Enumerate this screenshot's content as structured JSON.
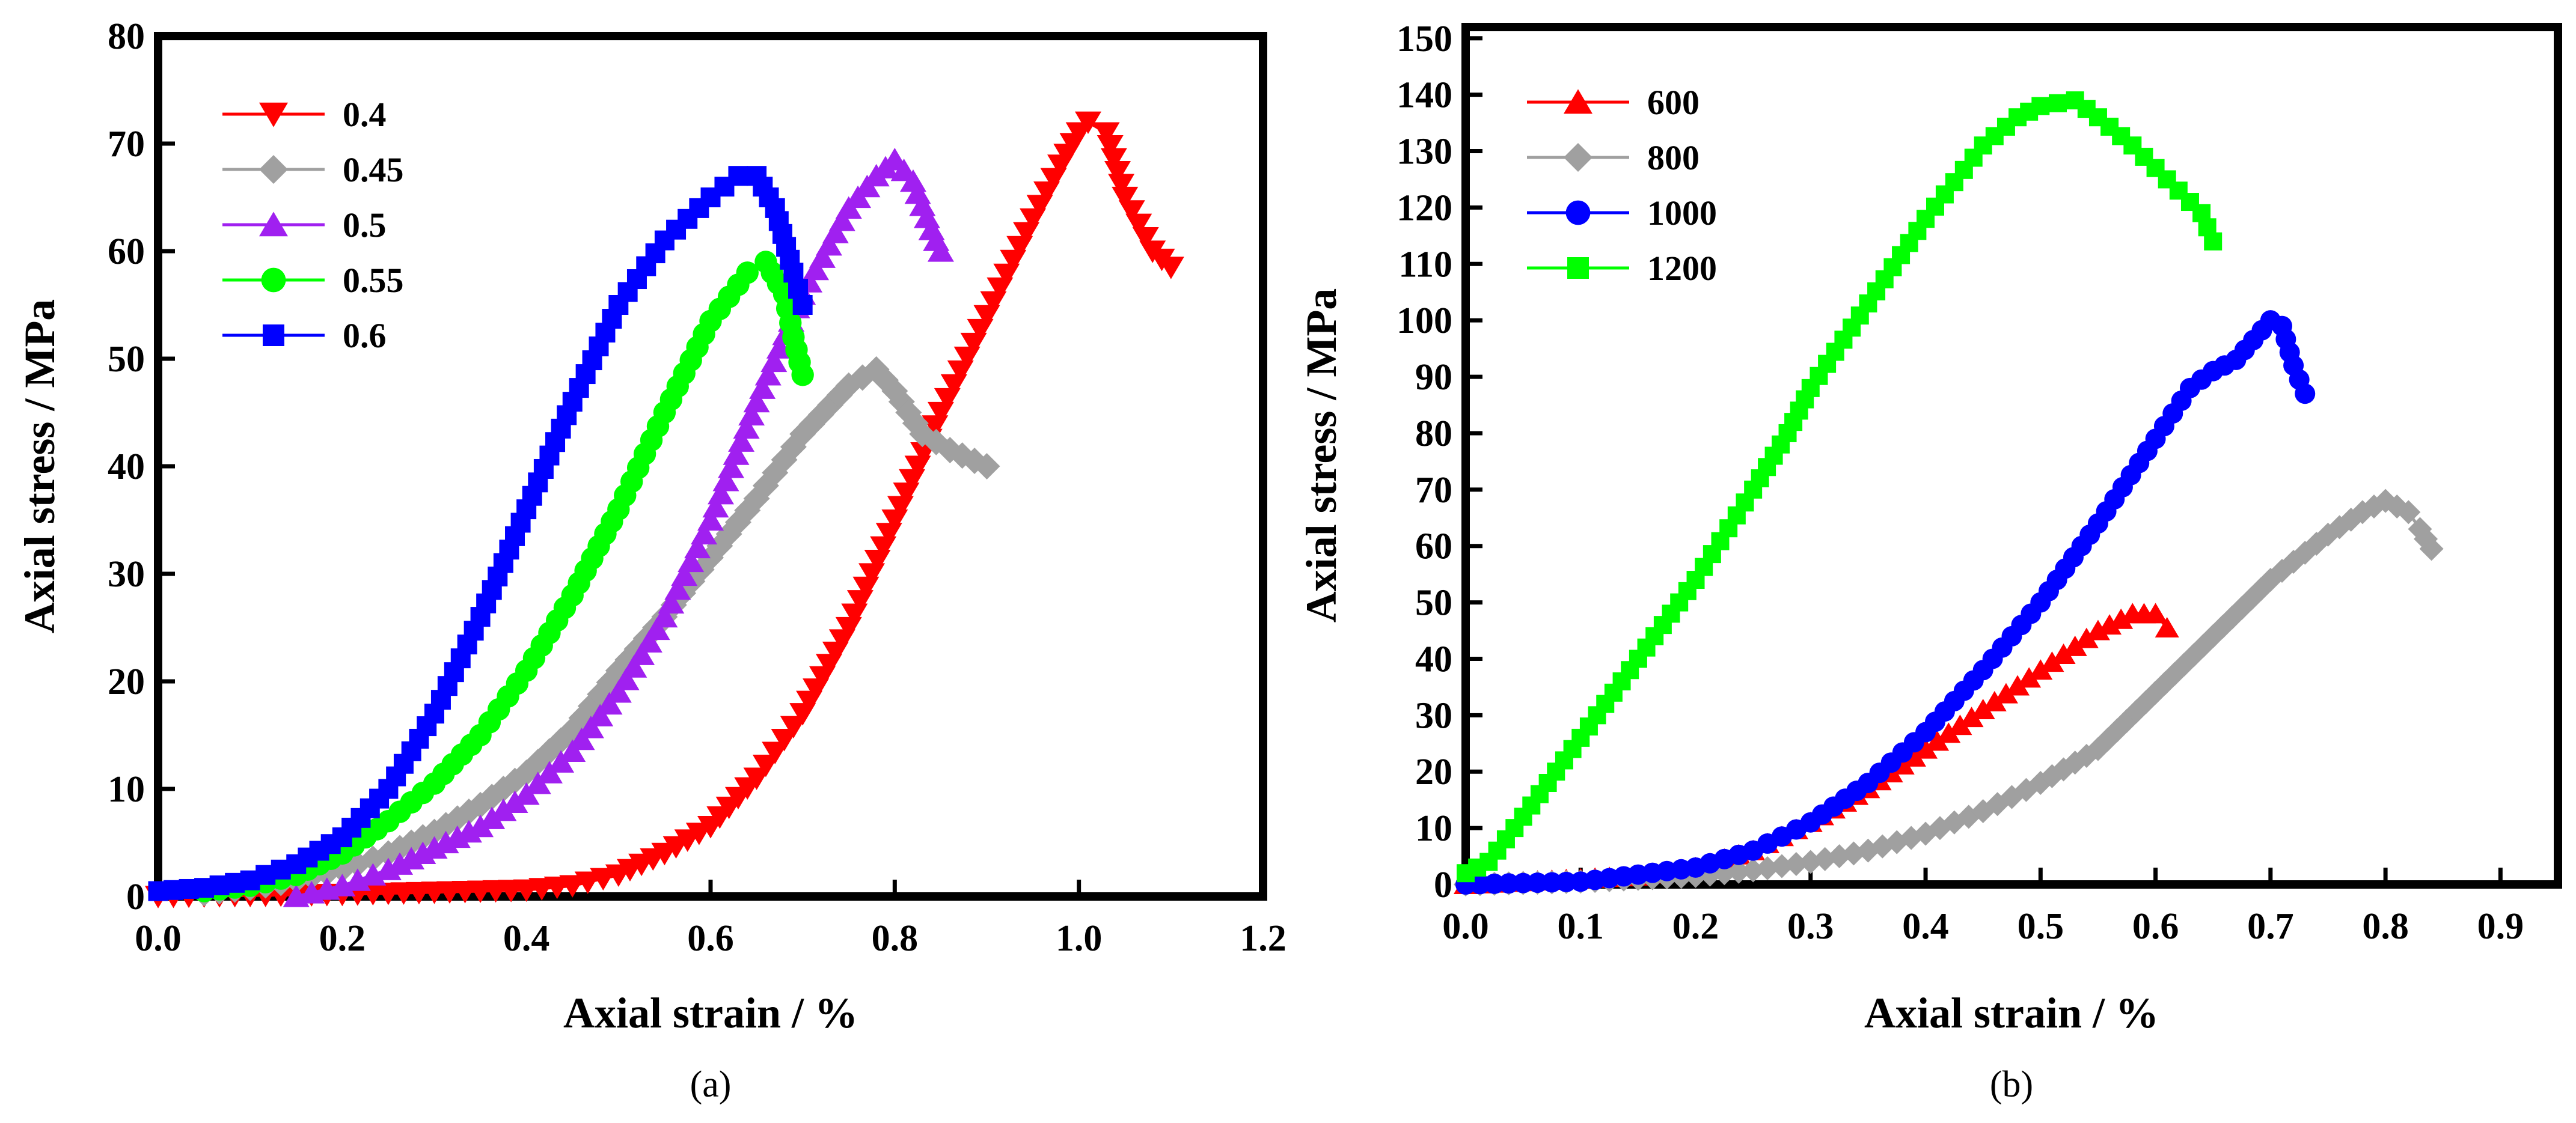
{
  "chart_data": [
    {
      "type": "scatter",
      "panel_label": "(a)",
      "xlabel": "Axial strain / %",
      "ylabel": "Axial stress / MPa",
      "xlim": [
        0,
        1.2
      ],
      "ylim": [
        0,
        80
      ],
      "xticks": [
        0.0,
        0.2,
        0.4,
        0.6,
        0.8,
        1.0,
        1.2
      ],
      "xtick_labels": [
        "0.0",
        "0.2",
        "0.4",
        "0.6",
        "0.8",
        "1.0",
        "1.2"
      ],
      "yticks": [
        0,
        10,
        20,
        30,
        40,
        50,
        60,
        70,
        80
      ],
      "ytick_labels": [
        "0",
        "10",
        "20",
        "30",
        "40",
        "50",
        "60",
        "70",
        "80"
      ],
      "legend_position": "top-left",
      "series": [
        {
          "name": "0.4",
          "color": "#ff0000",
          "marker": "triangle-down-icon",
          "x": [
            0.0,
            0.1,
            0.2,
            0.3,
            0.4,
            0.45,
            0.5,
            0.55,
            0.6,
            0.65,
            0.7,
            0.75,
            0.8,
            0.85,
            0.9,
            0.95,
            0.98,
            1.0,
            1.01,
            1.03,
            1.05,
            1.08,
            1.1
          ],
          "y": [
            0.0,
            0.1,
            0.2,
            0.4,
            0.6,
            1.0,
            2.0,
            4.0,
            6.5,
            11.0,
            17.0,
            25.0,
            35.0,
            45.0,
            54.0,
            63.0,
            68.0,
            71.0,
            72.0,
            71.0,
            65.0,
            60.0,
            58.5
          ]
        },
        {
          "name": "0.45",
          "color": "#a0a0a0",
          "marker": "diamond-icon",
          "x": [
            0.05,
            0.1,
            0.15,
            0.2,
            0.25,
            0.3,
            0.35,
            0.4,
            0.45,
            0.5,
            0.55,
            0.6,
            0.65,
            0.7,
            0.75,
            0.78,
            0.8,
            0.83,
            0.86,
            0.9
          ],
          "y": [
            0.3,
            0.8,
            1.5,
            2.5,
            4.0,
            6.0,
            8.5,
            11.5,
            15.5,
            21.0,
            26.0,
            31.5,
            37.0,
            43.0,
            47.5,
            49.0,
            47.0,
            43.0,
            41.5,
            40.0
          ]
        },
        {
          "name": "0.5",
          "color": "#a020f0",
          "marker": "triangle-up-icon",
          "x": [
            0.15,
            0.2,
            0.25,
            0.3,
            0.35,
            0.4,
            0.45,
            0.5,
            0.55,
            0.6,
            0.65,
            0.7,
            0.75,
            0.78,
            0.8,
            0.82,
            0.84,
            0.85
          ],
          "y": [
            0.0,
            1.0,
            2.5,
            4.5,
            6.5,
            9.5,
            13.5,
            19.0,
            26.0,
            35.0,
            46.0,
            56.0,
            64.0,
            67.0,
            68.5,
            66.5,
            62.0,
            60.0
          ]
        },
        {
          "name": "0.55",
          "color": "#00ff00",
          "marker": "circle-icon",
          "x": [
            0.05,
            0.1,
            0.15,
            0.2,
            0.25,
            0.3,
            0.35,
            0.4,
            0.45,
            0.5,
            0.55,
            0.6,
            0.64,
            0.66,
            0.68,
            0.69,
            0.7
          ],
          "y": [
            0.5,
            1.0,
            2.0,
            4.0,
            7.0,
            10.5,
            15.0,
            21.0,
            28.0,
            36.0,
            45.0,
            53.5,
            58.0,
            59.0,
            56.0,
            52.0,
            48.5
          ]
        },
        {
          "name": "0.6",
          "color": "#0000ff",
          "marker": "square-icon",
          "x": [
            0.0,
            0.05,
            0.1,
            0.15,
            0.2,
            0.25,
            0.3,
            0.35,
            0.4,
            0.45,
            0.5,
            0.55,
            0.6,
            0.63,
            0.65,
            0.67,
            0.69,
            0.7
          ],
          "y": [
            0.5,
            0.8,
            1.5,
            3.0,
            5.5,
            10.0,
            17.0,
            26.0,
            36.0,
            46.0,
            55.0,
            61.0,
            65.0,
            67.0,
            67.0,
            64.0,
            58.0,
            55.0
          ]
        }
      ]
    },
    {
      "type": "scatter",
      "panel_label": "(b)",
      "xlabel": "Axial strain / %",
      "ylabel": "Axial stress / MPa",
      "xlim": [
        0,
        0.95
      ],
      "ylim": [
        0,
        152
      ],
      "xticks": [
        0.0,
        0.1,
        0.2,
        0.3,
        0.4,
        0.5,
        0.6,
        0.7,
        0.8,
        0.9
      ],
      "xtick_labels": [
        "0.0",
        "0.1",
        "0.2",
        "0.3",
        "0.4",
        "0.5",
        "0.6",
        "0.7",
        "0.8",
        "0.9"
      ],
      "yticks": [
        0,
        10,
        20,
        30,
        40,
        50,
        60,
        70,
        80,
        90,
        100,
        110,
        120,
        130,
        140,
        150
      ],
      "ytick_labels": [
        "0",
        "10",
        "20",
        "30",
        "40",
        "50",
        "60",
        "70",
        "80",
        "90",
        "100",
        "110",
        "120",
        "130",
        "140",
        "150"
      ],
      "legend_position": "top-left",
      "series": [
        {
          "name": "600",
          "color": "#ff0000",
          "marker": "triangle-up-icon",
          "x": [
            0.0,
            0.05,
            0.1,
            0.15,
            0.2,
            0.25,
            0.3,
            0.35,
            0.4,
            0.45,
            0.5,
            0.55,
            0.58,
            0.6,
            0.61
          ],
          "y": [
            0.0,
            0.5,
            1.0,
            1.5,
            3.0,
            6.0,
            11.0,
            17.0,
            24.0,
            31.0,
            38.0,
            45.0,
            48.0,
            48.0,
            45.5
          ]
        },
        {
          "name": "800",
          "color": "#a0a0a0",
          "marker": "diamond-icon",
          "x": [
            0.0,
            0.1,
            0.2,
            0.25,
            0.3,
            0.35,
            0.4,
            0.45,
            0.5,
            0.55,
            0.6,
            0.65,
            0.7,
            0.75,
            0.78,
            0.8,
            0.82,
            0.83,
            0.84
          ],
          "y": [
            0.0,
            0.5,
            1.5,
            2.5,
            4.0,
            6.0,
            9.0,
            13.0,
            18.0,
            24.0,
            34.0,
            44.0,
            54.0,
            62.0,
            66.0,
            68.0,
            66.0,
            63.0,
            59.5
          ]
        },
        {
          "name": "1000",
          "color": "#0000ff",
          "marker": "circle-icon",
          "x": [
            0.0,
            0.1,
            0.2,
            0.25,
            0.3,
            0.35,
            0.4,
            0.45,
            0.5,
            0.55,
            0.6,
            0.63,
            0.65,
            0.67,
            0.7,
            0.71,
            0.72,
            0.73
          ],
          "y": [
            0.0,
            0.5,
            3.0,
            6.0,
            11.0,
            18.0,
            27.0,
            38.0,
            50.0,
            64.0,
            79.0,
            88.0,
            91.0,
            93.0,
            100.0,
            99.0,
            92.0,
            87.0
          ]
        },
        {
          "name": "1200",
          "color": "#00ff00",
          "marker": "square-icon",
          "x": [
            0.0,
            0.02,
            0.05,
            0.1,
            0.15,
            0.2,
            0.25,
            0.28,
            0.3,
            0.35,
            0.4,
            0.45,
            0.48,
            0.5,
            0.53,
            0.55,
            0.58,
            0.6,
            0.62,
            0.64,
            0.65
          ],
          "y": [
            2.0,
            4.0,
            12.0,
            26.0,
            40.0,
            54.0,
            70.0,
            80.0,
            88.0,
            103.0,
            118.0,
            131.0,
            136.0,
            138.0,
            139.0,
            136.0,
            131.0,
            127.0,
            123.0,
            119.0,
            114.0
          ]
        }
      ]
    }
  ]
}
